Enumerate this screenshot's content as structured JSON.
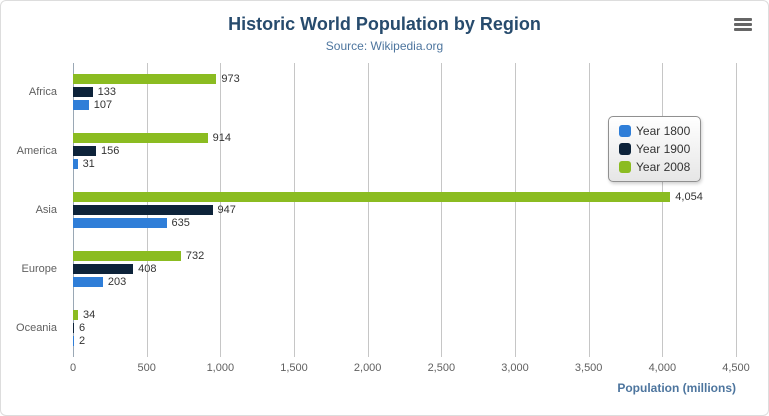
{
  "icons": {
    "export_menu": "hamburger-menu-icon"
  },
  "chart_data": {
    "type": "bar",
    "title": "Historic World Population by Region",
    "subtitle": "Source: Wikipedia.org",
    "categories": [
      "Africa",
      "America",
      "Asia",
      "Europe",
      "Oceania"
    ],
    "series": [
      {
        "name": "Year 1800",
        "color": "#2f7ed8",
        "values": [
          107,
          31,
          635,
          203,
          2
        ]
      },
      {
        "name": "Year 1900",
        "color": "#0d233a",
        "values": [
          133,
          156,
          947,
          408,
          6
        ]
      },
      {
        "name": "Year 2008",
        "color": "#8bbc21",
        "values": [
          973,
          914,
          4054,
          732,
          34
        ]
      }
    ],
    "display_order": [
      "Year 2008",
      "Year 1900",
      "Year 1800"
    ],
    "xlabel": "Population (millions)",
    "xlim": [
      0,
      4500
    ],
    "xticks": [
      0,
      500,
      1000,
      1500,
      2000,
      2500,
      3000,
      3500,
      4000,
      4500
    ],
    "xtick_labels": [
      "0",
      "500",
      "1,000",
      "1,500",
      "2,000",
      "2,500",
      "3,000",
      "3,500",
      "4,000",
      "4,500"
    ],
    "legend_position": "right",
    "grid": true,
    "colors": {
      "title": "#274b6d",
      "subtitle": "#4d759e",
      "axis_label": "#606060",
      "gridline": "#c6c6c6"
    }
  }
}
